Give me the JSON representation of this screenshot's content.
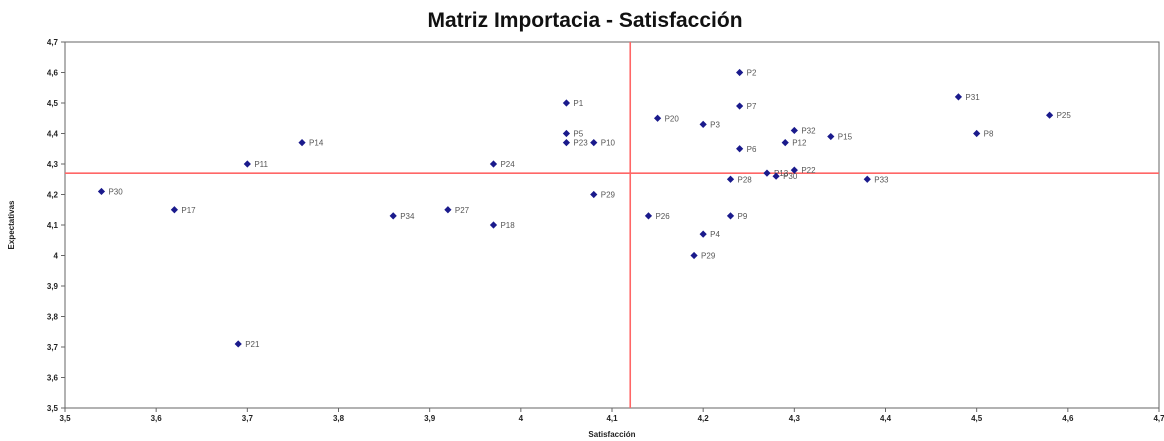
{
  "chart_data": {
    "type": "scatter",
    "title": "Matriz Importacia - Satisfacción",
    "xlabel": "Satisfacción",
    "ylabel": "Expectativas",
    "xlim": [
      3.5,
      4.7
    ],
    "ylim": [
      3.5,
      4.7
    ],
    "x_ticks": [
      "3,5",
      "3,6",
      "3,7",
      "3,8",
      "3,9",
      "4",
      "4,1",
      "4,2",
      "4,3",
      "4,4",
      "4,5",
      "4,6",
      "4,7"
    ],
    "y_ticks": [
      "3,5",
      "3,6",
      "3,7",
      "3,8",
      "3,9",
      "4",
      "4,1",
      "4,2",
      "4,3",
      "4,4",
      "4,5",
      "4,6",
      "4,7"
    ],
    "grid": false,
    "marker_color": "#1a1a8c",
    "reference_line_color": "#ff6666",
    "reference_lines": {
      "x": 4.12,
      "y": 4.27
    },
    "points": [
      {
        "label": "P30",
        "x": 3.54,
        "y": 4.21
      },
      {
        "label": "P17",
        "x": 3.62,
        "y": 4.15
      },
      {
        "label": "P11",
        "x": 3.7,
        "y": 4.3
      },
      {
        "label": "P21",
        "x": 3.69,
        "y": 3.71
      },
      {
        "label": "P14",
        "x": 3.76,
        "y": 4.37
      },
      {
        "label": "P34",
        "x": 3.86,
        "y": 4.13
      },
      {
        "label": "P27",
        "x": 3.92,
        "y": 4.15
      },
      {
        "label": "P18",
        "x": 3.97,
        "y": 4.1
      },
      {
        "label": "P24",
        "x": 3.97,
        "y": 4.3
      },
      {
        "label": "P1",
        "x": 4.05,
        "y": 4.5
      },
      {
        "label": "P5",
        "x": 4.05,
        "y": 4.4
      },
      {
        "label": "P23",
        "x": 4.05,
        "y": 4.37
      },
      {
        "label": "P10",
        "x": 4.08,
        "y": 4.37
      },
      {
        "label": "P29",
        "x": 4.08,
        "y": 4.2
      },
      {
        "label": "P20",
        "x": 4.15,
        "y": 4.45
      },
      {
        "label": "P26",
        "x": 4.14,
        "y": 4.13
      },
      {
        "label": "P3",
        "x": 4.2,
        "y": 4.43
      },
      {
        "label": "P9",
        "x": 4.23,
        "y": 4.13
      },
      {
        "label": "P4",
        "x": 4.2,
        "y": 4.07
      },
      {
        "label": "P29",
        "x": 4.19,
        "y": 4.0
      },
      {
        "label": "P2",
        "x": 4.24,
        "y": 4.6
      },
      {
        "label": "P7",
        "x": 4.24,
        "y": 4.49
      },
      {
        "label": "P6",
        "x": 4.24,
        "y": 4.35
      },
      {
        "label": "P28",
        "x": 4.23,
        "y": 4.25
      },
      {
        "label": "P13",
        "x": 4.27,
        "y": 4.27
      },
      {
        "label": "P30",
        "x": 4.28,
        "y": 4.26
      },
      {
        "label": "P12",
        "x": 4.29,
        "y": 4.37
      },
      {
        "label": "P32",
        "x": 4.3,
        "y": 4.41
      },
      {
        "label": "P22",
        "x": 4.3,
        "y": 4.28
      },
      {
        "label": "P15",
        "x": 4.34,
        "y": 4.39
      },
      {
        "label": "P33",
        "x": 4.38,
        "y": 4.25
      },
      {
        "label": "P31",
        "x": 4.48,
        "y": 4.52
      },
      {
        "label": "P8",
        "x": 4.5,
        "y": 4.4
      },
      {
        "label": "P25",
        "x": 4.58,
        "y": 4.46
      }
    ]
  }
}
